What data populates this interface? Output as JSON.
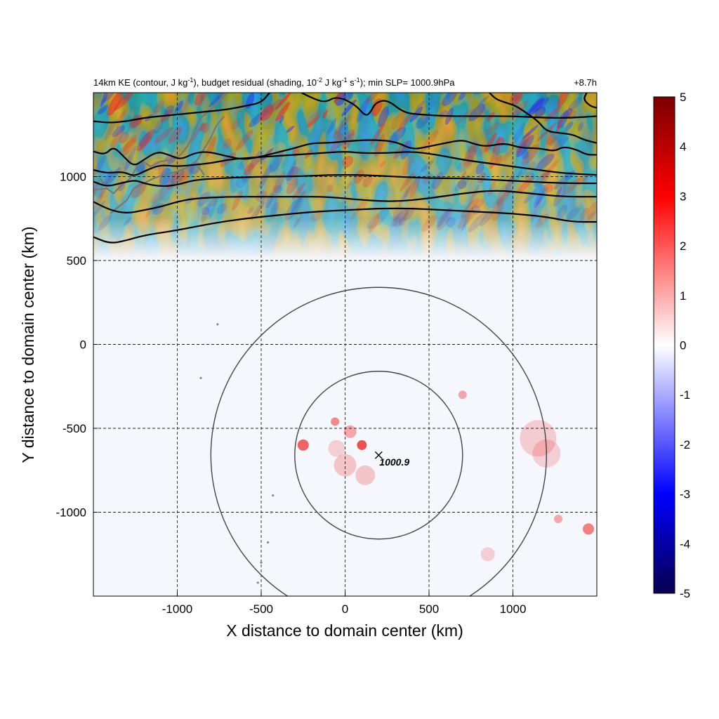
{
  "chart_data": {
    "type": "heatmap",
    "title_parts": {
      "p1": "14km KE (contour, J kg",
      "s1": "-1",
      "p2": "), budget residual (shading, 10",
      "s2": "-2",
      "p3": " J kg",
      "s3": "-1",
      "p4": " s",
      "s4": "-1",
      "p5": "); min SLP= 1000.9hPa"
    },
    "time_label": "+8.7h",
    "xlabel": "X distance to domain center (km)",
    "ylabel": "Y distance to domain center (km)",
    "xlim": [
      -1500,
      1500
    ],
    "ylim": [
      -1500,
      1500
    ],
    "xticks": [
      -1000,
      -500,
      0,
      500,
      1000
    ],
    "yticks": [
      1000,
      500,
      0,
      -500,
      -1000
    ],
    "grid": true,
    "colorbar": {
      "range": [
        -5,
        5
      ],
      "ticks": [
        5,
        4,
        3,
        2,
        1,
        0,
        -1,
        -2,
        -3,
        -4,
        -5
      ],
      "colors": [
        "#08004f",
        "#0000ff",
        "#ffffff",
        "#ff0000",
        "#7a0000"
      ]
    },
    "center_marker": {
      "x": 200,
      "y": -660,
      "label": "1000.9"
    },
    "rings_radius_km": [
      500,
      1000
    ],
    "ke_contours": [
      [
        [
          -1500,
          640
        ],
        [
          -1400,
          600
        ],
        [
          -1300,
          620
        ],
        [
          -1200,
          650
        ],
        [
          -1000,
          680
        ],
        [
          -800,
          720
        ],
        [
          -600,
          750
        ],
        [
          -400,
          770
        ],
        [
          -200,
          790
        ],
        [
          0,
          800
        ],
        [
          200,
          810
        ],
        [
          400,
          810
        ],
        [
          600,
          800
        ],
        [
          800,
          790
        ],
        [
          1000,
          780
        ],
        [
          1200,
          760
        ],
        [
          1350,
          730
        ],
        [
          1500,
          730
        ]
      ],
      [
        [
          -1500,
          850
        ],
        [
          -1400,
          800
        ],
        [
          -1300,
          780
        ],
        [
          -1200,
          800
        ],
        [
          -1100,
          820
        ],
        [
          -1000,
          850
        ],
        [
          -900,
          870
        ],
        [
          -700,
          880
        ],
        [
          -500,
          880
        ],
        [
          -300,
          880
        ],
        [
          -100,
          880
        ],
        [
          100,
          860
        ],
        [
          300,
          850
        ],
        [
          500,
          870
        ],
        [
          700,
          900
        ],
        [
          900,
          920
        ],
        [
          1100,
          900
        ],
        [
          1300,
          880
        ],
        [
          1500,
          880
        ]
      ],
      [
        [
          -1500,
          970
        ],
        [
          -1420,
          940
        ],
        [
          -1340,
          960
        ],
        [
          -1250,
          980
        ],
        [
          -1200,
          960
        ],
        [
          -1100,
          940
        ],
        [
          -1000,
          950
        ],
        [
          -900,
          980
        ],
        [
          -750,
          990
        ],
        [
          -500,
          1000
        ],
        [
          -300,
          1000
        ],
        [
          -100,
          1010
        ],
        [
          100,
          1010
        ],
        [
          300,
          1000
        ],
        [
          500,
          990
        ],
        [
          700,
          990
        ],
        [
          900,
          980
        ],
        [
          1100,
          970
        ],
        [
          1300,
          960
        ],
        [
          1500,
          960
        ]
      ],
      [
        [
          -1500,
          1040
        ],
        [
          -1420,
          1020
        ],
        [
          -1320,
          1030
        ],
        [
          -1260,
          1000
        ],
        [
          -1180,
          1040
        ],
        [
          -1100,
          1070
        ],
        [
          -1000,
          1060
        ],
        [
          -900,
          1070
        ],
        [
          -800,
          1080
        ],
        [
          -700,
          1100
        ],
        [
          -600,
          1110
        ],
        [
          -450,
          1120
        ],
        [
          -300,
          1130
        ],
        [
          -150,
          1140
        ],
        [
          0,
          1150
        ],
        [
          100,
          1140
        ],
        [
          250,
          1140
        ],
        [
          400,
          1150
        ],
        [
          550,
          1130
        ],
        [
          700,
          1100
        ],
        [
          850,
          1080
        ],
        [
          1000,
          1060
        ],
        [
          1150,
          1040
        ],
        [
          1300,
          1020
        ],
        [
          1500,
          1010
        ]
      ],
      [
        [
          -1500,
          1150
        ],
        [
          -1430,
          1130
        ],
        [
          -1380,
          1180
        ],
        [
          -1320,
          1120
        ],
        [
          -1260,
          1060
        ],
        [
          -1200,
          1100
        ],
        [
          -1120,
          1150
        ],
        [
          -1050,
          1130
        ],
        [
          -980,
          1100
        ],
        [
          -900,
          1140
        ],
        [
          -820,
          1150
        ],
        [
          -700,
          1120
        ],
        [
          -600,
          1100
        ],
        [
          -500,
          1120
        ],
        [
          -420,
          1140
        ],
        [
          -300,
          1170
        ],
        [
          -200,
          1200
        ],
        [
          -100,
          1200
        ],
        [
          0,
          1210
        ],
        [
          150,
          1220
        ],
        [
          300,
          1210
        ],
        [
          400,
          1160
        ],
        [
          500,
          1180
        ],
        [
          600,
          1200
        ],
        [
          700,
          1220
        ],
        [
          780,
          1190
        ],
        [
          850,
          1180
        ],
        [
          950,
          1200
        ],
        [
          1050,
          1170
        ],
        [
          1150,
          1170
        ],
        [
          1250,
          1150
        ],
        [
          1300,
          1180
        ],
        [
          1380,
          1160
        ],
        [
          1440,
          1130
        ],
        [
          1500,
          1130
        ]
      ],
      [
        [
          -1500,
          1330
        ],
        [
          -1400,
          1320
        ],
        [
          -1300,
          1330
        ],
        [
          -1200,
          1350
        ],
        [
          -1100,
          1360
        ],
        [
          -1000,
          1370
        ],
        [
          -900,
          1380
        ],
        [
          -800,
          1390
        ],
        [
          -700,
          1400
        ],
        [
          -600,
          1420
        ],
        [
          -500,
          1440
        ],
        [
          -450,
          1500
        ]
      ],
      [
        [
          -260,
          1500
        ],
        [
          -200,
          1470
        ],
        [
          -120,
          1440
        ],
        [
          -50,
          1480
        ],
        [
          60,
          1430
        ],
        [
          120,
          1360
        ],
        [
          150,
          1380
        ],
        [
          180,
          1440
        ],
        [
          250,
          1460
        ],
        [
          350,
          1380
        ],
        [
          450,
          1370
        ],
        [
          600,
          1360
        ],
        [
          800,
          1360
        ],
        [
          1000,
          1360
        ],
        [
          1200,
          1350
        ],
        [
          1350,
          1350
        ],
        [
          1500,
          1360
        ]
      ],
      [
        [
          1500,
          1200
        ],
        [
          1420,
          1220
        ],
        [
          1360,
          1250
        ],
        [
          1280,
          1260
        ],
        [
          1200,
          1270
        ],
        [
          1150,
          1330
        ],
        [
          1080,
          1380
        ],
        [
          1020,
          1420
        ],
        [
          960,
          1440
        ],
        [
          900,
          1460
        ],
        [
          860,
          1500
        ]
      ],
      [
        [
          1440,
          1500
        ],
        [
          1420,
          1460
        ],
        [
          1460,
          1420
        ],
        [
          1500,
          1410
        ]
      ]
    ]
  }
}
